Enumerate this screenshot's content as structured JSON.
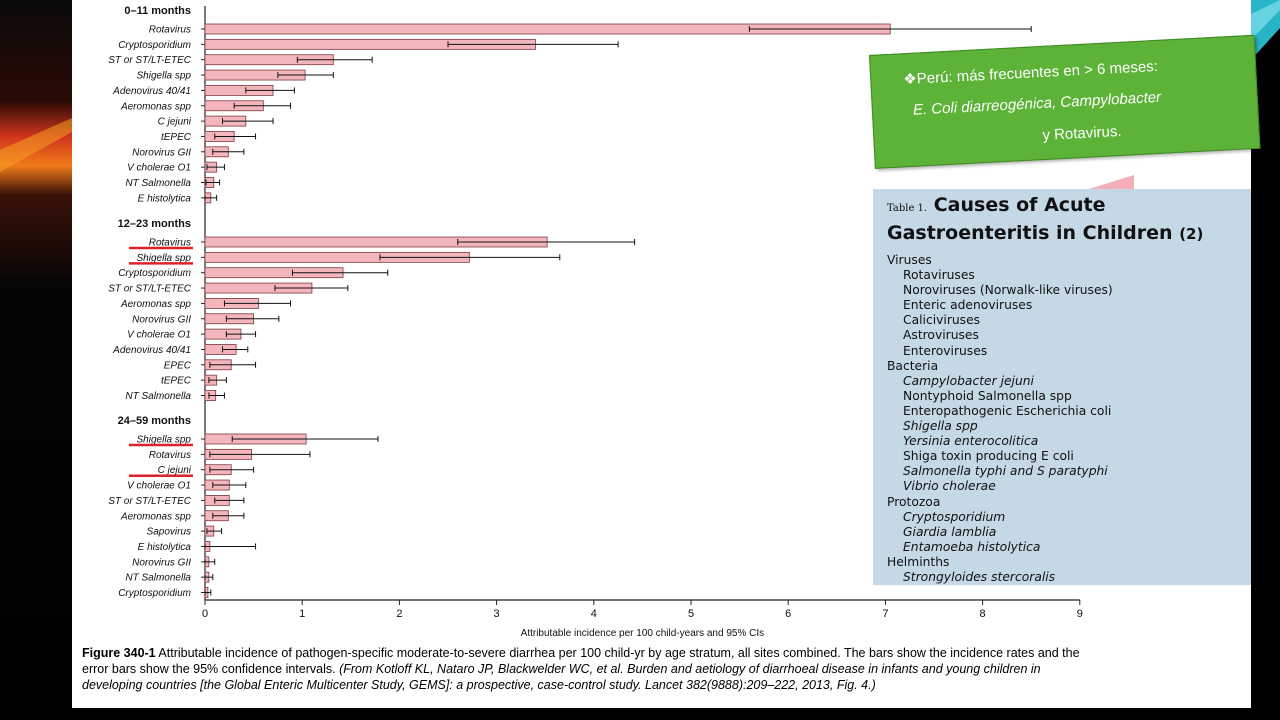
{
  "figure": {
    "caption_label": "Figure 340-1",
    "caption_text": " Attributable incidence of pathogen-specific moderate-to-severe diarrhea per 100 child-yr by age stratum, all sites combined. The bars show the incidence rates and the error bars show the 95% confidence intervals.",
    "caption_source": "(From Kotloff KL, Nataro JP, Blackwelder WC, et al. Burden and aetiology of diarrhoeal disease in infants and young children in developing countries [the Global Enteric Multicenter Study, GEMS]: a prospective, case-control study. Lancet 382(9888):209–222, 2013, Fig. 4.)"
  },
  "chart_data": {
    "type": "bar",
    "orientation": "horizontal",
    "xlabel": "Attributable incidence per 100 child-years and 95% CIs",
    "xlim": [
      0,
      9
    ],
    "xticks": [
      "0",
      "1",
      "2",
      "3",
      "4",
      "5",
      "6",
      "7",
      "8",
      "9"
    ],
    "bar_color": "#f4b6bd",
    "highlight_color": "#e0202a",
    "groups": [
      {
        "name": "0–11 months",
        "categories": [
          "Rotavirus",
          "Cryptosporidium",
          "ST or ST/LT-ETEC",
          "Shigella spp",
          "Adenovirus 40/41",
          "Aeromonas spp",
          "C jejuni",
          "tEPEC",
          "Norovirus GII",
          "V cholerae O1",
          "NT Salmonella",
          "E histolytica"
        ],
        "values": [
          7.05,
          3.4,
          1.32,
          1.03,
          0.7,
          0.6,
          0.42,
          0.3,
          0.24,
          0.12,
          0.09,
          0.06
        ],
        "ci_low": [
          5.6,
          2.5,
          0.95,
          0.75,
          0.42,
          0.3,
          0.18,
          0.1,
          0.08,
          0.02,
          0.01,
          0.0
        ],
        "ci_high": [
          8.5,
          4.25,
          1.72,
          1.32,
          0.92,
          0.88,
          0.7,
          0.52,
          0.4,
          0.2,
          0.15,
          0.12
        ],
        "highlighted": []
      },
      {
        "name": "12–23 months",
        "categories": [
          "Rotavirus",
          "Shigella spp",
          "Cryptosporidium",
          "ST or ST/LT-ETEC",
          "Aeromonas spp",
          "Norovirus GII",
          "V cholerae O1",
          "Adenovirus 40/41",
          "EPEC",
          "tEPEC",
          "NT Salmonella"
        ],
        "values": [
          3.52,
          2.72,
          1.42,
          1.1,
          0.55,
          0.5,
          0.37,
          0.32,
          0.27,
          0.12,
          0.11
        ],
        "ci_low": [
          2.6,
          1.8,
          0.9,
          0.72,
          0.2,
          0.22,
          0.22,
          0.18,
          0.05,
          0.04,
          0.04
        ],
        "ci_high": [
          4.42,
          3.65,
          1.88,
          1.47,
          0.88,
          0.76,
          0.52,
          0.44,
          0.52,
          0.22,
          0.2
        ],
        "highlighted": [
          "Rotavirus",
          "Shigella spp"
        ]
      },
      {
        "name": "24–59 months",
        "categories": [
          "Shigella spp",
          "Rotavirus",
          "C jejuni",
          "V cholerae O1",
          "ST or ST/LT-ETEC",
          "Aeromonas spp",
          "Sapovirus",
          "E histolytica",
          "Norovirus GII",
          "NT Salmonella",
          "Cryptosporidium"
        ],
        "values": [
          1.04,
          0.48,
          0.27,
          0.25,
          0.25,
          0.24,
          0.09,
          0.05,
          0.04,
          0.04,
          0.03
        ],
        "ci_low": [
          0.28,
          0.05,
          0.05,
          0.08,
          0.1,
          0.08,
          0.02,
          0.0,
          0.0,
          0.0,
          0.0
        ],
        "ci_high": [
          1.78,
          1.08,
          0.5,
          0.42,
          0.4,
          0.4,
          0.17,
          0.52,
          0.1,
          0.08,
          0.06
        ],
        "highlighted": [
          "Shigella spp",
          "C jejuni"
        ]
      }
    ]
  },
  "green_note": {
    "bullet": "❖",
    "line1": "Perú: más frecuentes en > 6 meses:",
    "line2": "E. Coli diarreogénica, Campylobacter",
    "line3": "y  Rotavirus."
  },
  "table1": {
    "number_label": "Table 1.",
    "title": "Causes of Acute Gastroenteritis in Children",
    "ref": "(2)",
    "sections": [
      {
        "heading": "Viruses",
        "items": [
          {
            "text": "Rotaviruses",
            "italic": false
          },
          {
            "text": "Noroviruses (Norwalk-like viruses)",
            "italic": false
          },
          {
            "text": "Enteric adenoviruses",
            "italic": false
          },
          {
            "text": "Caliciviruses",
            "italic": false
          },
          {
            "text": "Astroviruses",
            "italic": false
          },
          {
            "text": "Enteroviruses",
            "italic": false
          }
        ]
      },
      {
        "heading": "Bacteria",
        "items": [
          {
            "text": "Campylobacter jejuni",
            "italic": true
          },
          {
            "text": "Nontyphoid Salmonella spp",
            "italic": false
          },
          {
            "text": "Enteropathogenic Escherichia coli",
            "italic": false
          },
          {
            "text": "Shigella spp",
            "italic": true
          },
          {
            "text": "Yersinia enterocolitica",
            "italic": true
          },
          {
            "text": "Shiga toxin producing E coli",
            "italic": false
          },
          {
            "text": "Salmonella typhi and S paratyphi",
            "italic": true
          },
          {
            "text": "Vibrio cholerae",
            "italic": true
          }
        ]
      },
      {
        "heading": "Protozoa",
        "items": [
          {
            "text": "Cryptosporidium",
            "italic": true
          },
          {
            "text": "Giardia lamblia",
            "italic": true
          },
          {
            "text": "Entamoeba histolytica",
            "italic": true
          }
        ]
      },
      {
        "heading": "Helminths",
        "items": [
          {
            "text": "Strongyloides stercoralis",
            "italic": true
          }
        ]
      }
    ]
  }
}
